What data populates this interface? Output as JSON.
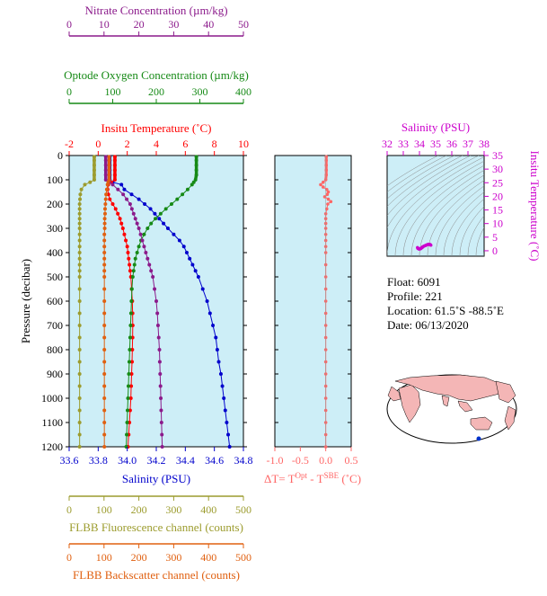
{
  "colors": {
    "nitrate": "#8b1a8b",
    "oxygen": "#168a16",
    "temperature": "#ff0000",
    "salinity": "#0000cc",
    "fluorescence": "#9c9c2e",
    "backscatter": "#e06010",
    "delta": "#ff6666",
    "ts": "#cc00cc",
    "panel_bg": "#cdeef7"
  },
  "info": {
    "float": "Float:  6091",
    "profile": "Profile:  221",
    "location": "Location:  61.5˚S  -88.5˚E",
    "date": "Date:  06/13/2020"
  },
  "chart_data": [
    {
      "type": "line",
      "id": "main-profile",
      "ylabel": "Pressure (decibar)",
      "ylim": [
        0,
        1200
      ],
      "yticks": [
        0,
        100,
        200,
        300,
        400,
        500,
        600,
        700,
        800,
        900,
        1000,
        1100,
        1200
      ],
      "invert_y": true,
      "grid": false,
      "axes": [
        {
          "name": "nitrate",
          "label": "Nitrate Concentration (µm/kg)",
          "range": [
            0,
            50
          ],
          "ticks": [
            0,
            10,
            20,
            30,
            40,
            50
          ],
          "position": "top"
        },
        {
          "name": "oxygen",
          "label": "Optode Oxygen Concentration (µm/kg)",
          "range": [
            0,
            400
          ],
          "ticks": [
            0,
            100,
            200,
            300,
            400
          ],
          "position": "top"
        },
        {
          "name": "temperature",
          "label": "Insitu Temperature (˚C)",
          "range": [
            -2,
            10
          ],
          "ticks": [
            -2,
            0,
            2,
            4,
            6,
            8,
            10
          ],
          "position": "top"
        },
        {
          "name": "salinity",
          "label": "Salinity (PSU)",
          "range": [
            33.6,
            34.8
          ],
          "ticks": [
            "33.6",
            "33.8",
            "34.0",
            "34.2",
            "34.4",
            "34.6",
            "34.8"
          ],
          "position": "bottom"
        },
        {
          "name": "fluorescence",
          "label": "FLBB Fluorescence channel (counts)",
          "range": [
            0,
            500
          ],
          "ticks": [
            0,
            100,
            200,
            300,
            400,
            500
          ],
          "position": "bottom"
        },
        {
          "name": "backscatter",
          "label": "FLBB Backscatter channel (counts)",
          "range": [
            0,
            500
          ],
          "ticks": [
            0,
            100,
            200,
            300,
            400,
            500
          ],
          "position": "bottom"
        }
      ],
      "series": [
        {
          "axis": "salinity",
          "marker": "dot",
          "pressure": [
            5,
            20,
            40,
            60,
            80,
            100,
            110,
            120,
            140,
            160,
            180,
            200,
            220,
            240,
            260,
            280,
            300,
            325,
            350,
            375,
            400,
            425,
            450,
            475,
            500,
            550,
            600,
            650,
            700,
            750,
            800,
            850,
            900,
            950,
            1000,
            1050,
            1100,
            1150,
            1200
          ],
          "values": [
            33.88,
            33.88,
            33.88,
            33.88,
            33.88,
            33.88,
            33.9,
            33.96,
            33.98,
            34.03,
            34.08,
            34.12,
            34.16,
            34.19,
            34.22,
            34.25,
            34.28,
            34.32,
            34.36,
            34.39,
            34.41,
            34.43,
            34.45,
            34.47,
            34.49,
            34.52,
            34.55,
            34.57,
            34.59,
            34.61,
            34.62,
            34.63,
            34.645,
            34.655,
            34.665,
            34.675,
            34.685,
            34.695,
            34.705
          ]
        },
        {
          "axis": "temperature",
          "marker": "dot",
          "pressure": [
            5,
            20,
            40,
            60,
            80,
            100,
            110,
            120,
            140,
            160,
            180,
            200,
            220,
            240,
            260,
            280,
            300,
            325,
            350,
            375,
            400,
            425,
            450,
            475,
            500,
            550,
            600,
            650,
            700,
            750,
            800,
            850,
            900,
            950,
            1000,
            1050,
            1100,
            1150,
            1200
          ],
          "values": [
            1.15,
            1.15,
            1.15,
            1.15,
            1.15,
            1.15,
            0.9,
            0.7,
            0.65,
            0.7,
            0.8,
            1.0,
            1.2,
            1.35,
            1.5,
            1.6,
            1.7,
            1.8,
            1.9,
            2.0,
            2.05,
            2.1,
            2.15,
            2.2,
            2.25,
            2.3,
            2.35,
            2.37,
            2.38,
            2.37,
            2.35,
            2.33,
            2.3,
            2.27,
            2.25,
            2.2,
            2.15,
            2.1,
            2.05
          ]
        },
        {
          "axis": "oxygen",
          "marker": "dot",
          "pressure": [
            5,
            20,
            40,
            60,
            80,
            100,
            110,
            120,
            140,
            160,
            180,
            200,
            220,
            240,
            260,
            280,
            300,
            325,
            350,
            375,
            400,
            425,
            450,
            475,
            500,
            550,
            600,
            650,
            700,
            750,
            800,
            850,
            900,
            950,
            1000,
            1050,
            1100,
            1150,
            1200
          ],
          "values": [
            292,
            292,
            292,
            292,
            292,
            290,
            286,
            282,
            272,
            260,
            248,
            235,
            222,
            210,
            198,
            188,
            180,
            172,
            165,
            160,
            156,
            152,
            150,
            148,
            146,
            144,
            143,
            142,
            141,
            140,
            139,
            138,
            137,
            136,
            135,
            134,
            133,
            132,
            131
          ]
        },
        {
          "axis": "nitrate",
          "marker": "dot",
          "pressure": [
            5,
            20,
            40,
            60,
            80,
            100,
            110,
            120,
            140,
            160,
            180,
            200,
            220,
            240,
            260,
            280,
            300,
            325,
            350,
            375,
            400,
            425,
            450,
            475,
            500,
            550,
            600,
            650,
            700,
            750,
            800,
            850,
            900,
            950,
            1000,
            1050,
            1100,
            1150,
            1200
          ],
          "values": [
            10.5,
            10.5,
            10.5,
            10.5,
            10.5,
            10.5,
            11.5,
            12.5,
            14,
            15.5,
            16.5,
            17.5,
            18,
            18.5,
            19,
            19.5,
            20,
            20.5,
            21,
            21.5,
            22,
            22.5,
            23,
            23.5,
            24,
            24.5,
            25,
            25.3,
            25.5,
            25.7,
            25.9,
            26,
            26.1,
            26.2,
            26.3,
            26.4,
            26.5,
            26.6,
            26.7
          ]
        },
        {
          "axis": "fluorescence",
          "marker": "dot",
          "pressure": [
            5,
            20,
            40,
            60,
            80,
            100,
            110,
            120,
            140,
            160,
            180,
            200,
            220,
            240,
            260,
            280,
            300,
            325,
            350,
            375,
            400,
            425,
            450,
            475,
            500,
            550,
            600,
            650,
            700,
            750,
            800,
            850,
            900,
            950,
            1000,
            1050,
            1100,
            1150,
            1200
          ],
          "values": [
            72,
            72,
            72,
            72,
            72,
            72,
            60,
            45,
            35,
            32,
            31,
            30,
            30,
            30,
            30,
            30,
            30,
            30,
            30,
            30,
            30,
            30,
            30,
            30,
            30,
            30,
            30,
            30,
            30,
            30,
            30,
            30,
            30,
            30,
            30,
            30,
            30,
            30,
            30
          ]
        },
        {
          "axis": "backscatter",
          "marker": "dot",
          "pressure": [
            5,
            20,
            40,
            60,
            80,
            100,
            110,
            120,
            140,
            160,
            180,
            200,
            220,
            240,
            260,
            280,
            300,
            325,
            350,
            375,
            400,
            425,
            450,
            475,
            500,
            550,
            600,
            650,
            700,
            750,
            800,
            850,
            900,
            950,
            1000,
            1050,
            1100,
            1150,
            1200
          ],
          "values": [
            115,
            115,
            115,
            115,
            115,
            115,
            112,
            110,
            108,
            106,
            105,
            104,
            103,
            103,
            102,
            102,
            102,
            101,
            101,
            101,
            101,
            101,
            101,
            101,
            101,
            101,
            101,
            101,
            101,
            101,
            101,
            101,
            101,
            101,
            101,
            101,
            101,
            101,
            101
          ]
        }
      ]
    },
    {
      "type": "line",
      "id": "delta-t",
      "xlabel": "ΔT= T",
      "xlabel_sup1": "Opt",
      "xlabel_mid": " - T",
      "xlabel_sup2": "SBE",
      "xlabel_end": " (˚C)",
      "xlim": [
        -1.0,
        0.5
      ],
      "xticks": [
        "-1.0",
        "-0.5",
        "0.0",
        "0.5"
      ],
      "ylim": [
        0,
        1200
      ],
      "series": [
        {
          "marker": "dot",
          "pressure": [
            5,
            20,
            40,
            60,
            80,
            100,
            110,
            120,
            130,
            140,
            150,
            160,
            170,
            180,
            190,
            200,
            220,
            240,
            260,
            280,
            300,
            325,
            350,
            375,
            400,
            450,
            500,
            550,
            600,
            650,
            700,
            750,
            800,
            850,
            900,
            950,
            1000,
            1050,
            1100,
            1150,
            1200
          ],
          "values": [
            0.01,
            0.01,
            0.01,
            0.01,
            0.01,
            0.0,
            -0.05,
            -0.1,
            -0.05,
            0.02,
            0.05,
            0.03,
            -0.02,
            0.05,
            0.1,
            0.04,
            0.02,
            0.0,
            0.0,
            0.0,
            0.0,
            0.0,
            0.0,
            0.0,
            0.0,
            0.0,
            0.0,
            0.0,
            0.0,
            0.0,
            0.0,
            0.0,
            0.0,
            0.0,
            0.0,
            0.0,
            0.0,
            0.0,
            0.0,
            0.0,
            0.0
          ]
        }
      ]
    },
    {
      "type": "scatter",
      "id": "ts-diagram",
      "xlabel": "Salinity (PSU)",
      "ylabel": "Insitu Temperature (˚C)",
      "xlim": [
        32,
        38
      ],
      "ylim": [
        -2,
        35
      ],
      "xticks": [
        32,
        33,
        34,
        35,
        36,
        37,
        38
      ],
      "yticks": [
        0,
        5,
        10,
        15,
        20,
        25,
        30,
        35
      ],
      "points_s": [
        33.88,
        33.9,
        33.96,
        33.98,
        34.03,
        34.08,
        34.12,
        34.16,
        34.19,
        34.22,
        34.28,
        34.36,
        34.41,
        34.47,
        34.52,
        34.57,
        34.61,
        34.63,
        34.655,
        34.675,
        34.705
      ],
      "points_t": [
        1.15,
        0.9,
        0.7,
        0.65,
        0.7,
        0.8,
        1.0,
        1.2,
        1.35,
        1.5,
        1.7,
        1.9,
        2.05,
        2.2,
        2.3,
        2.37,
        2.37,
        2.33,
        2.27,
        2.2,
        2.05
      ]
    }
  ]
}
